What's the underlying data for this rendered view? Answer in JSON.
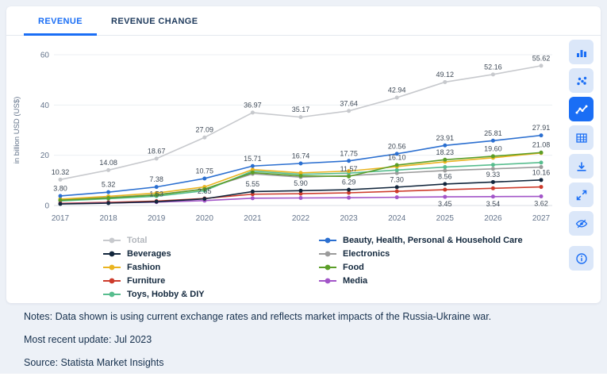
{
  "theme": {
    "accent_blue": "#1a6ef5",
    "page_background": "#edf1f7",
    "card_background": "#ffffff"
  },
  "tabs": [
    {
      "label": "REVENUE",
      "active": true
    },
    {
      "label": "REVENUE CHANGE",
      "active": false
    }
  ],
  "chart_data": {
    "type": "line",
    "x": [
      2017,
      2018,
      2019,
      2020,
      2021,
      2022,
      2023,
      2024,
      2025,
      2026,
      2027
    ],
    "ylabel": "in billion USD (US$)",
    "ylim": [
      0,
      60
    ],
    "yticks": [
      0,
      20,
      40,
      60
    ],
    "grid": true,
    "legend_position": "bottom",
    "series": [
      {
        "name": "Total",
        "color": "#c7c9cd",
        "values": [
          10.32,
          14.08,
          18.67,
          27.09,
          36.97,
          35.17,
          37.64,
          42.94,
          49.12,
          52.16,
          55.62
        ],
        "labels": [
          "10.32",
          "14.08",
          "18.67",
          "27.09",
          "36.97",
          "35.17",
          "37.64",
          "42.94",
          "49.12",
          "52.16",
          "55.62"
        ]
      },
      {
        "name": "Electronics",
        "color": "#9b9b9b",
        "values": [
          2.3,
          3.2,
          4.3,
          6.6,
          12.6,
          11.3,
          11.9,
          12.9,
          13.9,
          14.6,
          15.3
        ],
        "labels": null
      },
      {
        "name": "Toys, Hobby & DIY",
        "color": "#57bd8e",
        "values": [
          1.85,
          2.7,
          3.7,
          5.9,
          13.7,
          12.4,
          12.9,
          14.1,
          15.3,
          16.2,
          17.1
        ],
        "labels": null
      },
      {
        "name": "Fashion",
        "color": "#eab420",
        "values": [
          2.55,
          3.65,
          4.95,
          7.4,
          14.3,
          13.0,
          13.7,
          15.5,
          17.4,
          19.0,
          20.9
        ],
        "labels": null
      },
      {
        "name": "Food",
        "color": "#5b9e28",
        "values": [
          2.1,
          3.0,
          4.2,
          6.5,
          13.1,
          11.8,
          11.57,
          16.1,
          18.23,
          19.6,
          21.08
        ],
        "labels": [
          null,
          null,
          null,
          null,
          null,
          null,
          "11.57",
          "16.10",
          "18.23",
          "19.60",
          "21.08"
        ]
      },
      {
        "name": "Furniture",
        "color": "#cd3b2b",
        "values": [
          0.85,
          1.25,
          1.75,
          2.8,
          4.5,
          4.7,
          5.05,
          5.65,
          6.3,
          6.85,
          7.4
        ],
        "labels": null
      },
      {
        "name": "Media",
        "color": "#a255c8",
        "values": [
          0.7,
          1.0,
          1.35,
          1.95,
          2.9,
          3.0,
          3.1,
          3.28,
          3.45,
          3.54,
          3.62
        ],
        "labels": [
          null,
          null,
          null,
          null,
          null,
          null,
          null,
          null,
          "3.45",
          "3.54",
          "3.62"
        ],
        "label_side": "below"
      },
      {
        "name": "Beverages",
        "color": "#12263c",
        "values": [
          0.62,
          0.95,
          1.53,
          2.65,
          5.55,
          5.9,
          6.29,
          7.3,
          8.56,
          9.33,
          10.16
        ],
        "labels": [
          null,
          null,
          "1.53",
          "2.65",
          "5.55",
          "5.90",
          "6.29",
          "7.30",
          "8.56",
          "9.33",
          "10.16"
        ]
      },
      {
        "name": "Beauty, Health, Personal & Household Care",
        "color": "#2b6fd0",
        "values": [
          3.8,
          5.32,
          7.38,
          10.75,
          15.71,
          16.74,
          17.75,
          20.56,
          23.91,
          25.81,
          27.91
        ],
        "labels": [
          "3.80",
          "5.32",
          "7.38",
          "10.75",
          "15.71",
          "16.74",
          "17.75",
          "20.56",
          "23.91",
          "25.81",
          "27.91"
        ]
      }
    ]
  },
  "legend": {
    "columns": [
      [
        {
          "label": "Total",
          "color": "#c7c9cd",
          "text_color": "#b3b7bd"
        },
        {
          "label": "Beverages",
          "color": "#12263c"
        },
        {
          "label": "Fashion",
          "color": "#eab420"
        },
        {
          "label": "Furniture",
          "color": "#cd3b2b"
        },
        {
          "label": "Toys, Hobby & DIY",
          "color": "#57bd8e"
        }
      ],
      [
        {
          "label": "Beauty, Health, Personal & Household Care",
          "color": "#2b6fd0"
        },
        {
          "label": "Electronics",
          "color": "#9b9b9b"
        },
        {
          "label": "Food",
          "color": "#5b9e28"
        },
        {
          "label": "Media",
          "color": "#a255c8"
        }
      ]
    ]
  },
  "toolbar": {
    "buttons": [
      {
        "icon": "column-chart",
        "active": false
      },
      {
        "icon": "scatter-chart",
        "active": false
      },
      {
        "icon": "line-chart",
        "active": true
      },
      {
        "icon": "table",
        "active": false
      },
      {
        "icon": "download",
        "active": false
      },
      {
        "icon": "fullscreen",
        "active": false
      },
      {
        "icon": "visibility",
        "active": false
      },
      {
        "icon": "info",
        "active": false
      }
    ]
  },
  "notes": {
    "notes_line": "Notes: Data shown is using current exchange rates and reflects market impacts of the Russia-Ukraine war.",
    "update_line": "Most recent update: Jul 2023",
    "source_line": "Source: Statista Market Insights"
  }
}
